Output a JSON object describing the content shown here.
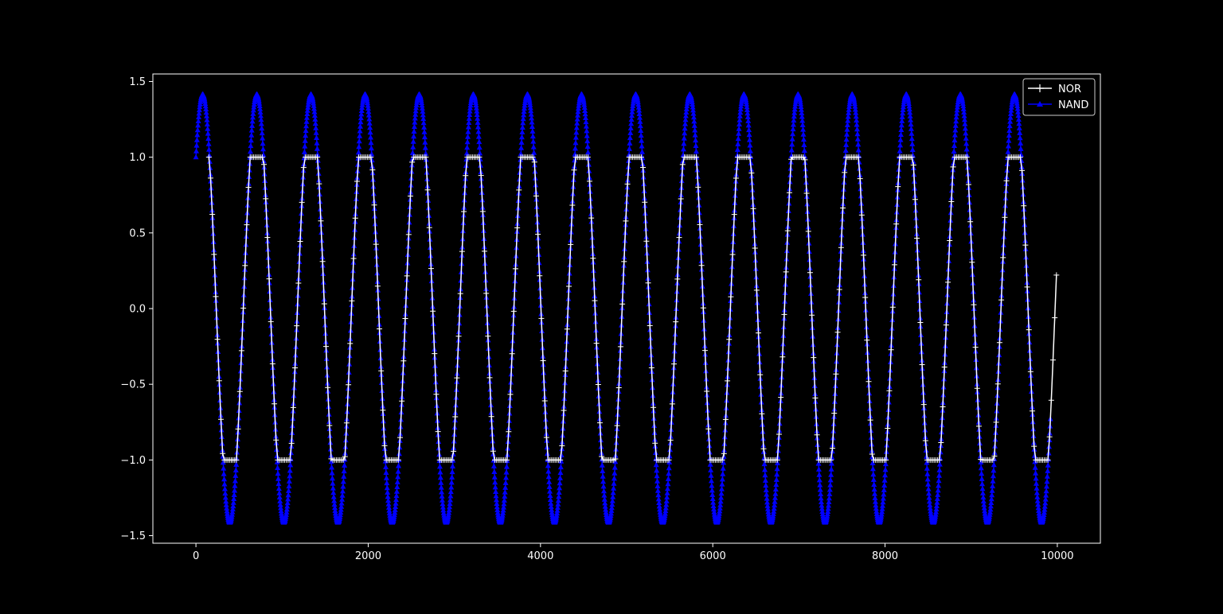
{
  "chart_data": {
    "type": "line",
    "title": "",
    "xlabel": "",
    "ylabel": "",
    "xlim": [
      -500,
      10500
    ],
    "ylim": [
      -1.55,
      1.55
    ],
    "grid": false,
    "legend_position": "top-right",
    "x_ticks": [
      0,
      2000,
      4000,
      6000,
      8000,
      10000
    ],
    "x_tick_labels": [
      "0",
      "2000",
      "4000",
      "6000",
      "8000",
      "10000"
    ],
    "y_ticks": [
      -1.5,
      -1.0,
      -0.5,
      0.0,
      0.5,
      1.0,
      1.5
    ],
    "y_tick_labels": [
      "−1.5",
      "−1.0",
      "−0.5",
      "0.0",
      "0.5",
      "1.0",
      "1.5"
    ],
    "series": [
      {
        "name": "NOR",
        "color": "#ffffff",
        "marker": "+",
        "function": "clip(1.414 * sin(2*pi*x/628.3 + pi/4), -1, 1)",
        "period": 628.3,
        "amplitude": 1.414,
        "phase": 0.7854,
        "clip": [
          -1,
          1
        ],
        "x_start": 150,
        "x_end": 10000,
        "x_step": 20
      },
      {
        "name": "NAND",
        "color": "#0000ff",
        "marker": "^",
        "function": "1.414 * sin(2*pi*x/628.3 + pi/4)",
        "period": 628.3,
        "amplitude": 1.414,
        "phase": 0.7854,
        "x_start": 0,
        "x_end": 9920,
        "x_step": 4
      }
    ]
  }
}
